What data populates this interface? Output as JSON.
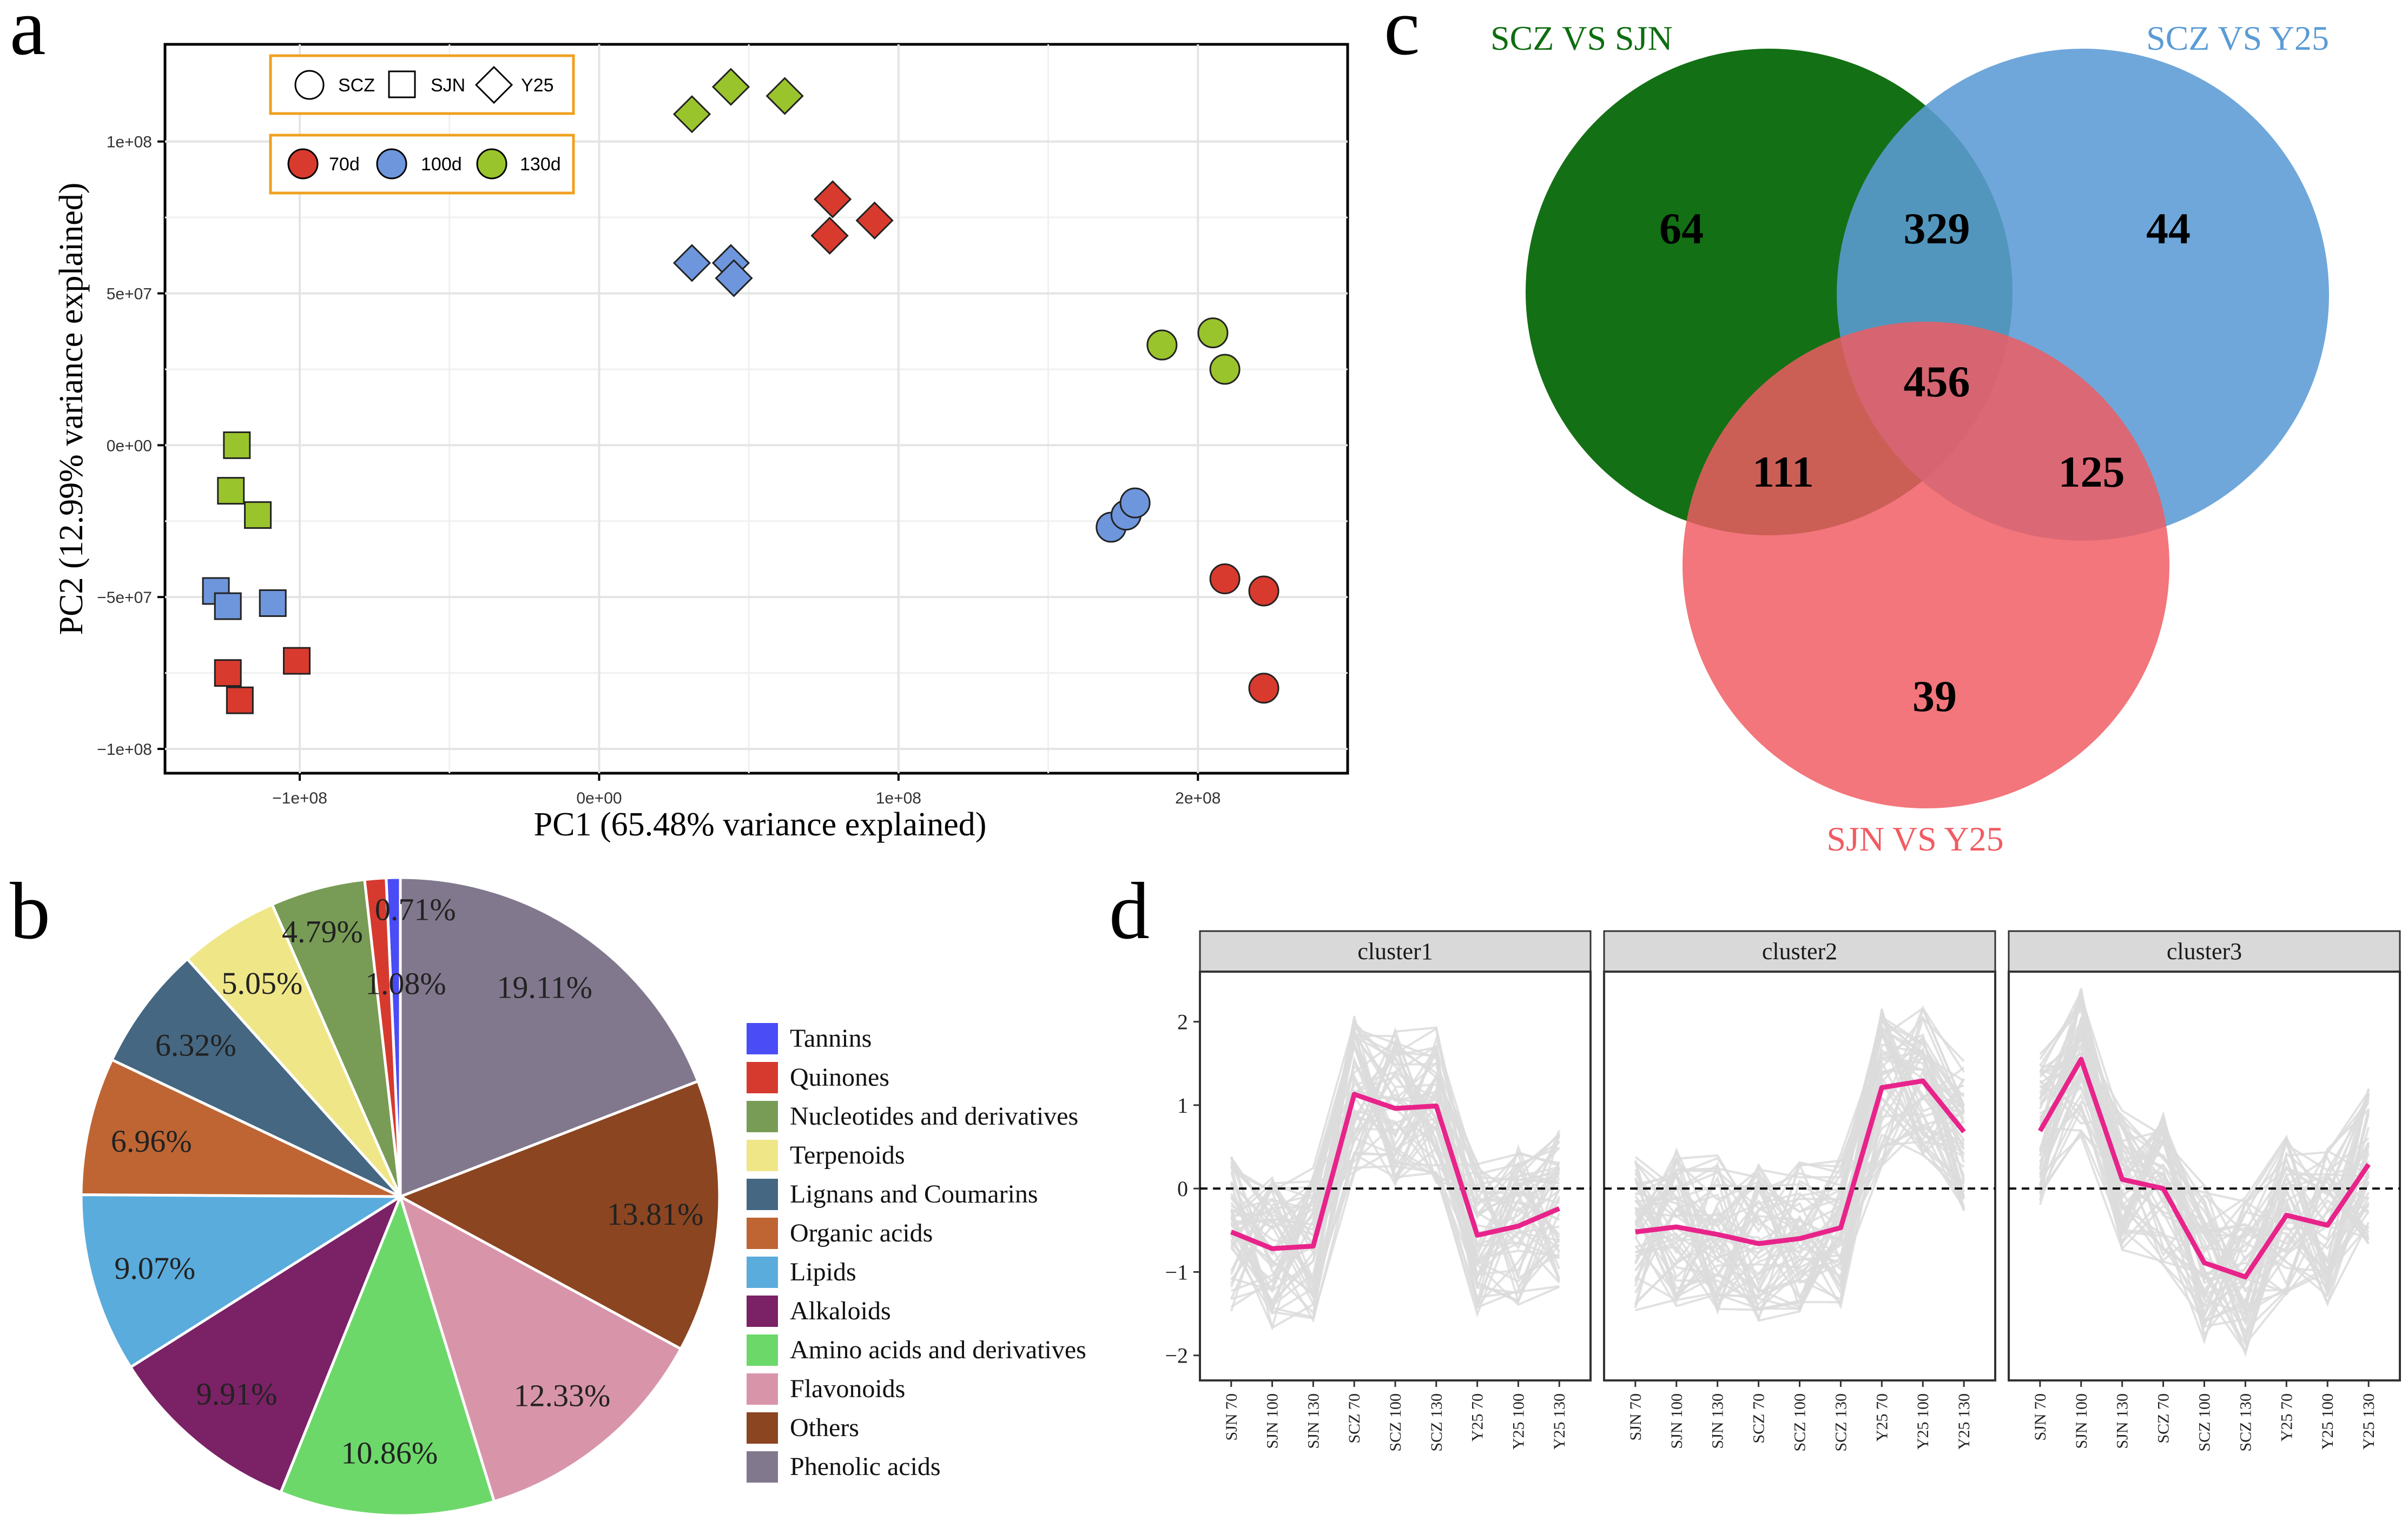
{
  "panel_labels": {
    "a": "a",
    "b": "b",
    "c": "c",
    "d": "d"
  },
  "chart_data": [
    {
      "panel": "a",
      "type": "scatter",
      "xlabel": "PC1 (65.48% variance explained)",
      "ylabel": "PC2 (12.99% variance explained)",
      "xlim": [
        -145000000,
        250000000
      ],
      "ylim": [
        -108000000,
        132000000
      ],
      "xticks": [
        {
          "value": -100000000,
          "label": "−1e+08"
        },
        {
          "value": 0,
          "label": "0e+00"
        },
        {
          "value": 100000000,
          "label": "1e+08"
        },
        {
          "value": 200000000,
          "label": "2e+08"
        }
      ],
      "yticks": [
        {
          "value": -100000000,
          "label": "−1e+08"
        },
        {
          "value": -50000000,
          "label": "−5e+07"
        },
        {
          "value": 0,
          "label": "0e+00"
        },
        {
          "value": 50000000,
          "label": "5e+07"
        },
        {
          "value": 100000000,
          "label": "1e+08"
        }
      ],
      "shape_legend": [
        {
          "label": "SCZ",
          "shape": "circle"
        },
        {
          "label": "SJN",
          "shape": "square"
        },
        {
          "label": "Y25",
          "shape": "diamond"
        }
      ],
      "color_legend": [
        {
          "label": "70d",
          "color": "#d93a2e"
        },
        {
          "label": "100d",
          "color": "#6e96dc"
        },
        {
          "label": "130d",
          "color": "#9ac42c"
        }
      ],
      "series": [
        {
          "sample": "SCZ",
          "stage": "70d",
          "points": [
            [
              209000000,
              -44000000
            ],
            [
              222000000,
              -48000000
            ],
            [
              222000000,
              -80000000
            ]
          ]
        },
        {
          "sample": "SCZ",
          "stage": "100d",
          "points": [
            [
              171000000,
              -27000000
            ],
            [
              176000000,
              -23000000
            ],
            [
              179000000,
              -19000000
            ]
          ]
        },
        {
          "sample": "SCZ",
          "stage": "130d",
          "points": [
            [
              188000000,
              33000000
            ],
            [
              205000000,
              37000000
            ],
            [
              209000000,
              25000000
            ]
          ]
        },
        {
          "sample": "SJN",
          "stage": "70d",
          "points": [
            [
              -124000000,
              -75000000
            ],
            [
              -120000000,
              -84000000
            ],
            [
              -101000000,
              -71000000
            ]
          ]
        },
        {
          "sample": "SJN",
          "stage": "100d",
          "points": [
            [
              -128000000,
              -48000000
            ],
            [
              -124000000,
              -53000000
            ],
            [
              -109000000,
              -52000000
            ]
          ]
        },
        {
          "sample": "SJN",
          "stage": "130d",
          "points": [
            [
              -121000000,
              0
            ],
            [
              -123000000,
              -15000000
            ],
            [
              -114000000,
              -23000000
            ]
          ]
        },
        {
          "sample": "Y25",
          "stage": "70d",
          "points": [
            [
              78000000,
              81000000
            ],
            [
              77000000,
              69000000
            ],
            [
              92000000,
              74000000
            ]
          ]
        },
        {
          "sample": "Y25",
          "stage": "100d",
          "points": [
            [
              31000000,
              60000000
            ],
            [
              44000000,
              60000000
            ],
            [
              45000000,
              55000000
            ]
          ]
        },
        {
          "sample": "Y25",
          "stage": "130d",
          "points": [
            [
              31000000,
              109000000
            ],
            [
              44000000,
              118000000
            ],
            [
              62000000,
              115000000
            ]
          ]
        }
      ]
    },
    {
      "panel": "b",
      "type": "pie",
      "slices": [
        {
          "label": "Tannins",
          "value": 0.71,
          "text": "0.71%",
          "color": "#4a4cf5"
        },
        {
          "label": "Quinones",
          "value": 1.08,
          "text": "1.08%",
          "color": "#d63a2f"
        },
        {
          "label": "Nucleotides and derivatives",
          "value": 4.79,
          "text": "4.79%",
          "color": "#789c55"
        },
        {
          "label": "Terpenoids",
          "value": 5.05,
          "text": "5.05%",
          "color": "#efe688"
        },
        {
          "label": "Lignans and Coumarins",
          "value": 6.32,
          "text": "6.32%",
          "color": "#456781"
        },
        {
          "label": "Organic acids",
          "value": 6.96,
          "text": "6.96%",
          "color": "#bf6534"
        },
        {
          "label": "Lipids",
          "value": 9.07,
          "text": "9.07%",
          "color": "#5aacdc"
        },
        {
          "label": "Alkaloids",
          "value": 9.91,
          "text": "9.91%",
          "color": "#7b2165"
        },
        {
          "label": "Amino acids and derivatives",
          "value": 10.86,
          "text": "10.86%",
          "color": "#6dd86a"
        },
        {
          "label": "Flavonoids",
          "value": 12.33,
          "text": "12.33%",
          "color": "#d895aa"
        },
        {
          "label": "Others",
          "value": 13.81,
          "text": "13.81%",
          "color": "#8b4521"
        },
        {
          "label": "Phenolic acids",
          "value": 19.11,
          "text": "19.11%",
          "color": "#81788e"
        }
      ]
    },
    {
      "panel": "c",
      "type": "venn",
      "sets": [
        {
          "name": "SCZ VS SJN",
          "color": "#0e6d10"
        },
        {
          "name": "SCZ VS Y25",
          "color": "#5b9bd5"
        },
        {
          "name": "SJN VS Y25",
          "color": "#f05c62"
        }
      ],
      "regions": [
        {
          "sets": [
            "SCZ VS SJN"
          ],
          "value": 64
        },
        {
          "sets": [
            "SCZ VS SJN",
            "SCZ VS Y25"
          ],
          "value": 329
        },
        {
          "sets": [
            "SCZ VS Y25"
          ],
          "value": 44
        },
        {
          "sets": [
            "SCZ VS SJN",
            "SCZ VS Y25",
            "SJN VS Y25"
          ],
          "value": 456
        },
        {
          "sets": [
            "SCZ VS SJN",
            "SJN VS Y25"
          ],
          "value": 111
        },
        {
          "sets": [
            "SCZ VS Y25",
            "SJN VS Y25"
          ],
          "value": 125
        },
        {
          "sets": [
            "SJN VS Y25"
          ],
          "value": 39
        }
      ]
    },
    {
      "panel": "d",
      "type": "line",
      "categories": [
        "SJN 70",
        "SJN 100",
        "SJN 130",
        "SCZ 70",
        "SCZ 100",
        "SCZ 130",
        "Y25 70",
        "Y25 100",
        "Y25 130"
      ],
      "ylim": [
        -2.3,
        2.6
      ],
      "yticks": [
        -2,
        -1,
        0,
        1,
        2
      ],
      "mean_color": "#e8238a",
      "clusters": [
        {
          "name": "cluster1",
          "mean": [
            -0.52,
            -0.72,
            -0.69,
            1.13,
            0.96,
            0.99,
            -0.56,
            -0.45,
            -0.24
          ]
        },
        {
          "name": "cluster2",
          "mean": [
            -0.52,
            -0.46,
            -0.55,
            -0.66,
            -0.6,
            -0.47,
            1.21,
            1.29,
            0.68
          ]
        },
        {
          "name": "cluster3",
          "mean": [
            0.69,
            1.55,
            0.11,
            0.0,
            -0.89,
            -1.06,
            -0.32,
            -0.44,
            0.29
          ]
        }
      ]
    }
  ]
}
